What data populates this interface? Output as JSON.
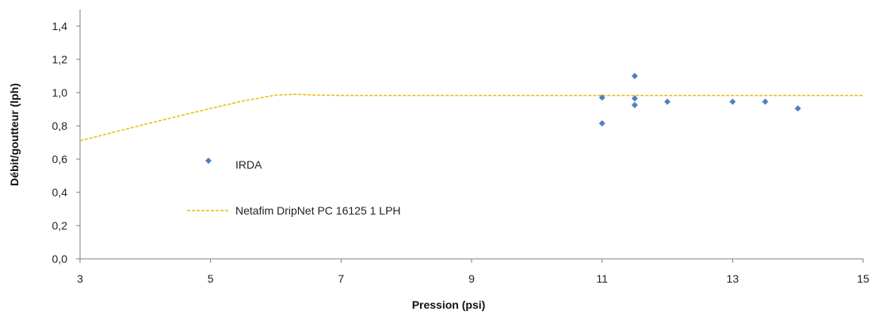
{
  "chart_data": {
    "type": "scatter",
    "xlabel": "Pression (psi)",
    "ylabel": "Débit/goutteur (lph)",
    "xlim": [
      3,
      15
    ],
    "ylim": [
      0,
      1.5
    ],
    "xticks": [
      3,
      5,
      7,
      9,
      11,
      13,
      15
    ],
    "yticks": [
      0.0,
      0.2,
      0.4,
      0.6,
      0.8,
      1.0,
      1.2,
      1.4
    ],
    "ytick_labels": [
      "0,0",
      "0,2",
      "0,4",
      "0,6",
      "0,8",
      "1,0",
      "1,2",
      "1,4"
    ],
    "grid": false,
    "legend_position": "middle-left",
    "series": [
      {
        "name": "IRDA",
        "kind": "scatter",
        "color": "#4f81bd",
        "marker": "diamond",
        "points": [
          {
            "x": 11,
            "y": 0.97
          },
          {
            "x": 11,
            "y": 0.815
          },
          {
            "x": 11.5,
            "y": 1.1
          },
          {
            "x": 11.5,
            "y": 0.965
          },
          {
            "x": 11.5,
            "y": 0.925
          },
          {
            "x": 12,
            "y": 0.945
          },
          {
            "x": 13,
            "y": 0.945
          },
          {
            "x": 13.5,
            "y": 0.945
          },
          {
            "x": 14,
            "y": 0.905
          }
        ]
      },
      {
        "name": "Netafim DripNet PC 16125 1 LPH",
        "kind": "line",
        "style": "dashed",
        "color": "#f0b800",
        "points": [
          {
            "x": 3,
            "y": 0.71
          },
          {
            "x": 4,
            "y": 0.81
          },
          {
            "x": 5,
            "y": 0.905
          },
          {
            "x": 5.5,
            "y": 0.95
          },
          {
            "x": 6,
            "y": 0.985
          },
          {
            "x": 6.3,
            "y": 0.99
          },
          {
            "x": 6.6,
            "y": 0.985
          },
          {
            "x": 7,
            "y": 0.983
          },
          {
            "x": 15,
            "y": 0.983
          }
        ]
      }
    ]
  }
}
